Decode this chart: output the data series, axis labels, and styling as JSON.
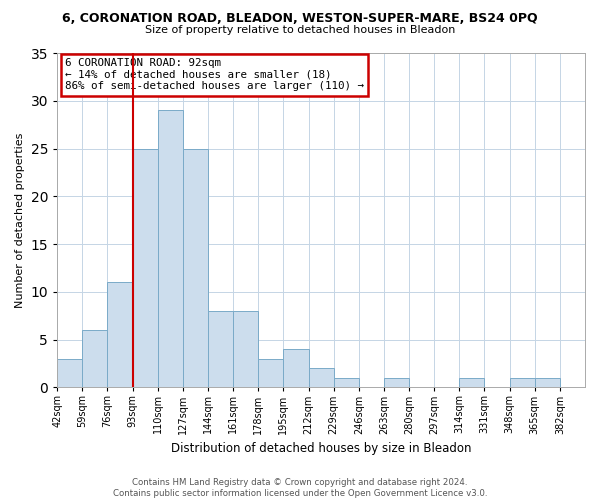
{
  "title": "6, CORONATION ROAD, BLEADON, WESTON-SUPER-MARE, BS24 0PQ",
  "subtitle": "Size of property relative to detached houses in Bleadon",
  "xlabel": "Distribution of detached houses by size in Bleadon",
  "ylabel": "Number of detached properties",
  "bar_color": "#ccdded",
  "bar_edge_color": "#7aaac8",
  "bin_labels": [
    "42sqm",
    "59sqm",
    "76sqm",
    "93sqm",
    "110sqm",
    "127sqm",
    "144sqm",
    "161sqm",
    "178sqm",
    "195sqm",
    "212sqm",
    "229sqm",
    "246sqm",
    "263sqm",
    "280sqm",
    "297sqm",
    "314sqm",
    "331sqm",
    "348sqm",
    "365sqm",
    "382sqm"
  ],
  "bin_edges": [
    42,
    59,
    76,
    93,
    110,
    127,
    144,
    161,
    178,
    195,
    212,
    229,
    246,
    263,
    280,
    297,
    314,
    331,
    348,
    365,
    382
  ],
  "counts": [
    3,
    6,
    11,
    25,
    29,
    25,
    8,
    8,
    3,
    4,
    2,
    1,
    0,
    1,
    0,
    0,
    1,
    0,
    1,
    1
  ],
  "vline_x": 93,
  "vline_color": "#cc0000",
  "ylim": [
    0,
    35
  ],
  "yticks": [
    0,
    5,
    10,
    15,
    20,
    25,
    30,
    35
  ],
  "annotation_text": "6 CORONATION ROAD: 92sqm\n← 14% of detached houses are smaller (18)\n86% of semi-detached houses are larger (110) →",
  "annotation_box_color": "#ffffff",
  "annotation_box_edge": "#cc0000",
  "footer_text": "Contains HM Land Registry data © Crown copyright and database right 2024.\nContains public sector information licensed under the Open Government Licence v3.0.",
  "background_color": "#ffffff",
  "grid_color": "#c5d5e5"
}
